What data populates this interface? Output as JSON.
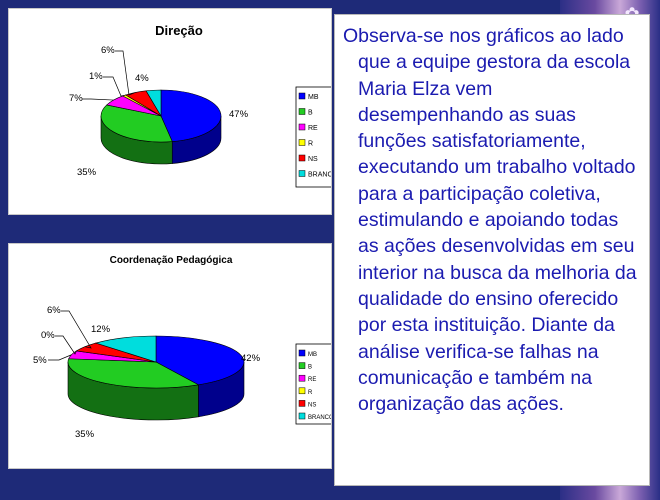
{
  "slide": {
    "paragraph": "Observa-se nos gráficos ao lado que a equipe gestora da escola Maria Elza vem desempenhando as suas funções satisfatoriamente, executando um trabalho voltado para a participação coletiva, estimulando e apoiando todas as ações desenvolvidas em seu interior na busca da melhoria da qualidade do ensino oferecido por esta instituição. Diante da análise verifica-se falhas na comunicação e também na organização das ações.",
    "decoration_icon": "flower-ornament-icon"
  },
  "chart_data": [
    {
      "type": "pie",
      "title": "Direção",
      "legend_position": "right",
      "categories": [
        "MB",
        "B",
        "RE",
        "R",
        "NS",
        "BRANCO"
      ],
      "values": [
        47,
        35,
        7,
        1,
        6,
        4
      ],
      "labels": [
        "47%",
        "35%",
        "7%",
        "1%",
        "6%",
        "4%"
      ],
      "colors": [
        "#0000ff",
        "#22cc22",
        "#ff00ff",
        "#ffff00",
        "#ff0000",
        "#00dddd"
      ]
    },
    {
      "type": "pie",
      "title": "Coordenação Pedagógica",
      "legend_position": "right",
      "categories": [
        "MB",
        "B",
        "RE",
        "R",
        "NS",
        "BRANCO"
      ],
      "values": [
        42,
        35,
        5,
        0,
        6,
        12
      ],
      "labels": [
        "42%",
        "35%",
        "5%",
        "0%",
        "6%",
        "12%"
      ],
      "colors": [
        "#0000ff",
        "#22cc22",
        "#ff00ff",
        "#ffff00",
        "#ff0000",
        "#00dddd"
      ]
    }
  ]
}
